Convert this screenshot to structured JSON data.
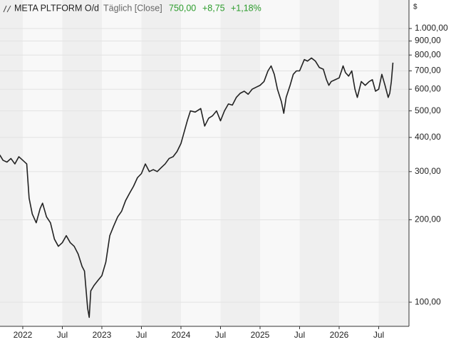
{
  "chart_data": {
    "type": "line",
    "header": {
      "name": "META PLTFORM O/d",
      "interval": "Täglich [Close]",
      "last": "750,00",
      "change": "+8,75",
      "change_pct": "+1,18%"
    },
    "currency": "$",
    "log_scale": true,
    "grid": true,
    "x": [
      2021.71,
      2021.75,
      2021.8,
      2021.85,
      2021.9,
      2021.95,
      2022.0,
      2022.05,
      2022.08,
      2022.12,
      2022.17,
      2022.22,
      2022.25,
      2022.3,
      2022.35,
      2022.4,
      2022.45,
      2022.5,
      2022.55,
      2022.6,
      2022.65,
      2022.7,
      2022.75,
      2022.78,
      2022.82,
      2022.84,
      2022.86,
      2022.9,
      2022.95,
      2023.0,
      2023.05,
      2023.1,
      2023.15,
      2023.2,
      2023.25,
      2023.3,
      2023.35,
      2023.4,
      2023.45,
      2023.5,
      2023.55,
      2023.6,
      2023.65,
      2023.7,
      2023.75,
      2023.8,
      2023.85,
      2023.9,
      2023.95,
      2024.0,
      2024.08,
      2024.12,
      2024.18,
      2024.25,
      2024.3,
      2024.35,
      2024.4,
      2024.45,
      2024.5,
      2024.55,
      2024.6,
      2024.65,
      2024.7,
      2024.75,
      2024.8,
      2024.85,
      2024.9,
      2024.95,
      2025.0,
      2025.05,
      2025.1,
      2025.14,
      2025.18,
      2025.22,
      2025.27,
      2025.3,
      2025.33,
      2025.38,
      2025.42,
      2025.46,
      2025.5,
      2025.56,
      2025.6,
      2025.65,
      2025.7,
      2025.75,
      2025.8,
      2025.84,
      2025.87,
      2025.9,
      2025.95,
      2026.0,
      2026.03,
      2026.05,
      2026.08,
      2026.12,
      2026.16,
      2026.2,
      2026.23,
      2026.28,
      2026.33,
      2026.38,
      2026.42,
      2026.46,
      2026.5,
      2026.54,
      2026.58,
      2026.62,
      2026.64,
      2026.66,
      2026.68
    ],
    "series": [
      {
        "name": "META PLTFORM O/d",
        "color": "#222222",
        "values": [
          345,
          330,
          325,
          335,
          320,
          340,
          330,
          320,
          240,
          210,
          195,
          220,
          230,
          205,
          195,
          170,
          160,
          165,
          175,
          165,
          160,
          150,
          135,
          130,
          95,
          88,
          110,
          115,
          120,
          125,
          140,
          175,
          190,
          205,
          215,
          235,
          250,
          265,
          285,
          295,
          320,
          300,
          305,
          300,
          310,
          320,
          335,
          340,
          355,
          380,
          460,
          500,
          495,
          510,
          440,
          470,
          480,
          500,
          460,
          500,
          530,
          525,
          560,
          580,
          590,
          575,
          600,
          610,
          620,
          640,
          700,
          730,
          680,
          600,
          540,
          490,
          560,
          620,
          680,
          700,
          700,
          770,
          760,
          780,
          760,
          720,
          710,
          650,
          620,
          640,
          650,
          660,
          700,
          730,
          690,
          670,
          700,
          600,
          560,
          640,
          620,
          640,
          650,
          590,
          600,
          680,
          620,
          560,
          580,
          640,
          750
        ]
      }
    ],
    "xlim": [
      2021.712,
      2026.883
    ],
    "xticks": [
      {
        "value": 2022,
        "label": "2022"
      },
      {
        "value": 2022.5,
        "label": "Jul"
      },
      {
        "value": 2023,
        "label": "2023"
      },
      {
        "value": 2023.5,
        "label": "Jul"
      },
      {
        "value": 2024,
        "label": "2024"
      },
      {
        "value": 2024.5,
        "label": "Jul"
      },
      {
        "value": 2025,
        "label": "2025"
      },
      {
        "value": 2025.5,
        "label": "Jul"
      },
      {
        "value": 2026,
        "label": "2026"
      },
      {
        "value": 2026.5,
        "label": "Jul"
      }
    ],
    "ylim": [
      81.6,
      1271
    ],
    "yticks": [
      {
        "value": 100,
        "label": "100,00"
      },
      {
        "value": 200,
        "label": "200,00"
      },
      {
        "value": 300,
        "label": "300,00"
      },
      {
        "value": 400,
        "label": "400,00"
      },
      {
        "value": 500,
        "label": "500,00"
      },
      {
        "value": 600,
        "label": "600,00"
      },
      {
        "value": 700,
        "label": "700,00"
      },
      {
        "value": 800,
        "label": "800,00"
      },
      {
        "value": 900,
        "label": "900,00"
      },
      {
        "value": 1000,
        "label": "1.000,00"
      }
    ]
  }
}
